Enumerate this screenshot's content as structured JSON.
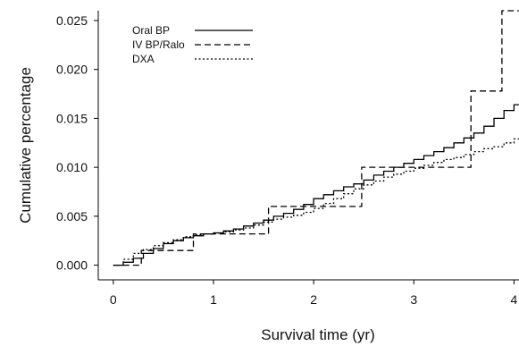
{
  "chart_data": {
    "type": "line",
    "title": "",
    "xlabel": "Survival time (yr)",
    "ylabel": "Cumulative percentage",
    "xlim": [
      -0.15,
      4.05
    ],
    "ylim": [
      -0.0015,
      0.026
    ],
    "xticks": [
      0,
      1,
      2,
      3,
      4
    ],
    "xtick_labels": [
      "0",
      "1",
      "2",
      "3",
      "4"
    ],
    "yticks": [
      0.0,
      0.005,
      0.01,
      0.015,
      0.02,
      0.025
    ],
    "ytick_labels": [
      "0.000",
      "0.005",
      "0.010",
      "0.015",
      "0.020",
      "0.025"
    ],
    "grid": false,
    "legend_position": "top-left",
    "series": [
      {
        "name": "Oral BP",
        "line_style": "solid",
        "color": "#000000",
        "step": true,
        "x": [
          0.0,
          0.1,
          0.2,
          0.3,
          0.4,
          0.5,
          0.6,
          0.7,
          0.8,
          0.9,
          1.0,
          1.1,
          1.2,
          1.3,
          1.4,
          1.5,
          1.6,
          1.7,
          1.8,
          1.9,
          2.0,
          2.1,
          2.2,
          2.3,
          2.4,
          2.5,
          2.6,
          2.7,
          2.8,
          2.9,
          3.0,
          3.1,
          3.2,
          3.3,
          3.4,
          3.5,
          3.6,
          3.7,
          3.8,
          3.9,
          4.0,
          4.05
        ],
        "y": [
          0.0,
          0.0003,
          0.0007,
          0.0012,
          0.0017,
          0.0022,
          0.0025,
          0.0028,
          0.003,
          0.0032,
          0.0033,
          0.0035,
          0.0037,
          0.004,
          0.0043,
          0.0046,
          0.005,
          0.0053,
          0.0057,
          0.0062,
          0.0068,
          0.0072,
          0.0076,
          0.008,
          0.0083,
          0.0087,
          0.0092,
          0.0096,
          0.01,
          0.0104,
          0.0108,
          0.0112,
          0.0116,
          0.012,
          0.0125,
          0.013,
          0.0135,
          0.0142,
          0.015,
          0.0158,
          0.0164,
          0.0164
        ]
      },
      {
        "name": "IV BP/Ralo",
        "line_style": "dashed",
        "color": "#000000",
        "step": true,
        "x": [
          0.0,
          0.28,
          0.8,
          1.55,
          2.48,
          3.57,
          3.88,
          4.05
        ],
        "y": [
          0.0,
          0.0015,
          0.0032,
          0.006,
          0.01,
          0.0178,
          0.026,
          0.026
        ]
      },
      {
        "name": "DXA",
        "line_style": "dotted",
        "color": "#000000",
        "step": true,
        "x": [
          0.0,
          0.1,
          0.2,
          0.3,
          0.4,
          0.5,
          0.6,
          0.7,
          0.8,
          0.9,
          1.0,
          1.1,
          1.2,
          1.3,
          1.4,
          1.5,
          1.6,
          1.7,
          1.8,
          1.9,
          2.0,
          2.1,
          2.2,
          2.3,
          2.4,
          2.5,
          2.6,
          2.7,
          2.8,
          2.9,
          3.0,
          3.1,
          3.2,
          3.3,
          3.4,
          3.5,
          3.6,
          3.7,
          3.8,
          3.9,
          4.0,
          4.05
        ],
        "y": [
          0.0,
          0.0006,
          0.0012,
          0.0016,
          0.002,
          0.0023,
          0.0026,
          0.0029,
          0.0031,
          0.0032,
          0.0033,
          0.0034,
          0.0036,
          0.0038,
          0.0041,
          0.0044,
          0.0047,
          0.0049,
          0.0051,
          0.0054,
          0.0058,
          0.0063,
          0.0068,
          0.0073,
          0.0078,
          0.0082,
          0.0086,
          0.009,
          0.0093,
          0.0096,
          0.0099,
          0.0102,
          0.0105,
          0.0108,
          0.011,
          0.0113,
          0.0116,
          0.0119,
          0.0121,
          0.0125,
          0.0129,
          0.013
        ]
      }
    ]
  }
}
